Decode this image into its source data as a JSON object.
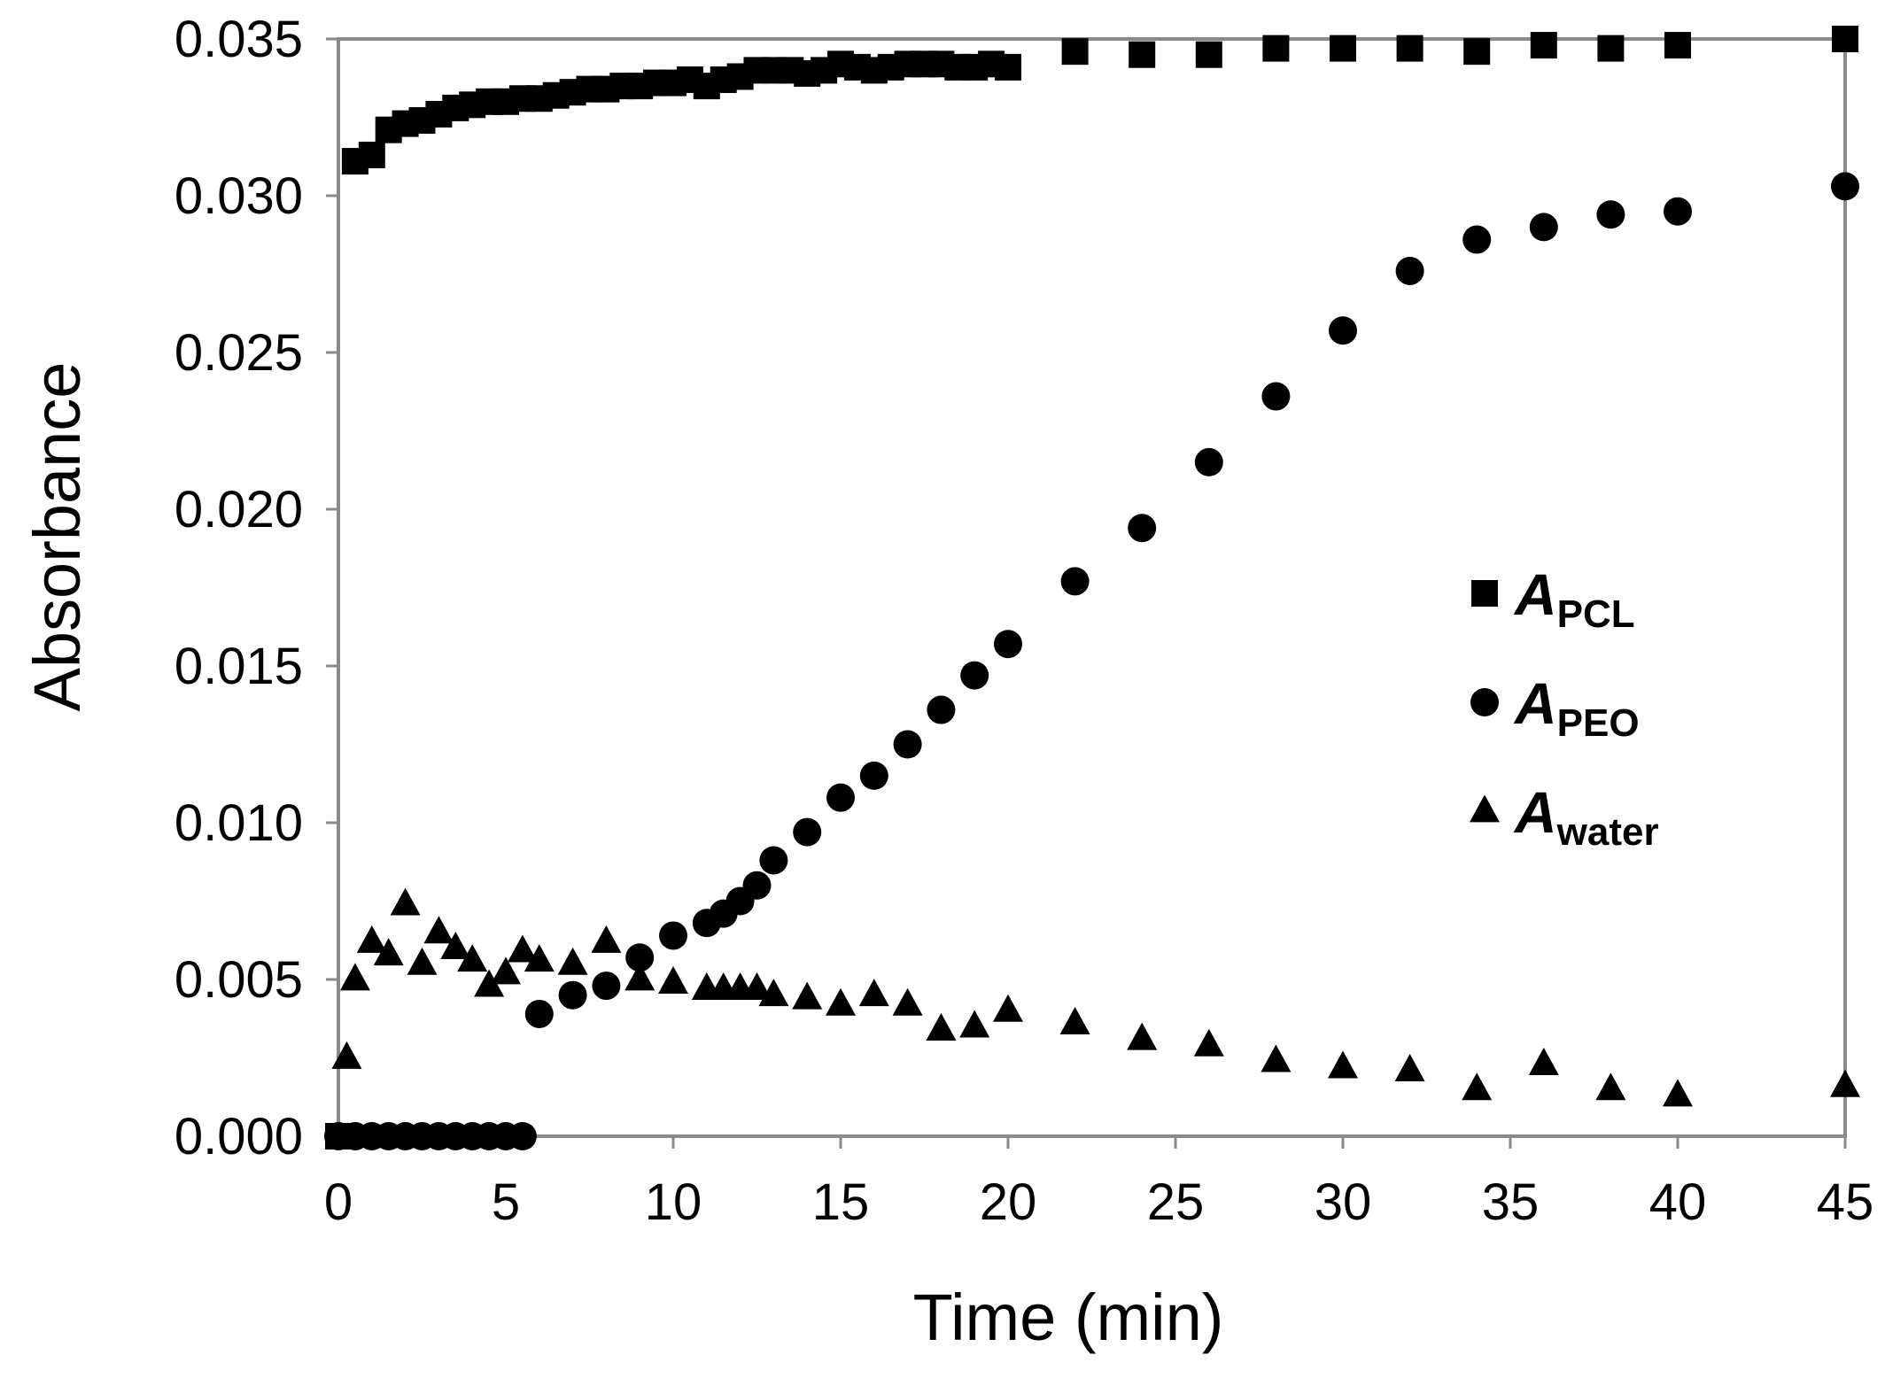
{
  "chart_data": {
    "type": "scatter",
    "xlabel": "Time (min)",
    "ylabel": "Absorbance",
    "xlim": [
      0,
      45
    ],
    "ylim": [
      0.0,
      0.035
    ],
    "x_ticks": [
      "0",
      "5",
      "10",
      "15",
      "20",
      "25",
      "30",
      "35",
      "40",
      "45"
    ],
    "y_ticks": [
      "0.000",
      "0.005",
      "0.010",
      "0.015",
      "0.020",
      "0.025",
      "0.030",
      "0.035"
    ],
    "grid": false,
    "legend_position": "right-middle",
    "series": [
      {
        "name": "A",
        "subscript": "PCL",
        "marker": "square",
        "points": [
          [
            0,
            0.0
          ],
          [
            0.5,
            0.0311
          ],
          [
            1,
            0.0313
          ],
          [
            1.5,
            0.0321
          ],
          [
            2,
            0.0323
          ],
          [
            2.5,
            0.0324
          ],
          [
            3,
            0.0326
          ],
          [
            3.5,
            0.0328
          ],
          [
            4,
            0.0329
          ],
          [
            4.5,
            0.033
          ],
          [
            5,
            0.033
          ],
          [
            5.5,
            0.0331
          ],
          [
            6,
            0.0331
          ],
          [
            6.5,
            0.0332
          ],
          [
            7,
            0.0333
          ],
          [
            7.5,
            0.0334
          ],
          [
            8,
            0.0334
          ],
          [
            8.5,
            0.0335
          ],
          [
            9,
            0.0335
          ],
          [
            9.5,
            0.0336
          ],
          [
            10,
            0.0336
          ],
          [
            10.5,
            0.0337
          ],
          [
            11,
            0.0335
          ],
          [
            11.5,
            0.0337
          ],
          [
            12,
            0.0338
          ],
          [
            12.5,
            0.034
          ],
          [
            13,
            0.034
          ],
          [
            13.5,
            0.034
          ],
          [
            14,
            0.0339
          ],
          [
            14.5,
            0.034
          ],
          [
            15,
            0.0342
          ],
          [
            15.5,
            0.0341
          ],
          [
            16,
            0.034
          ],
          [
            16.5,
            0.0341
          ],
          [
            17,
            0.0342
          ],
          [
            17.5,
            0.0342
          ],
          [
            18,
            0.0342
          ],
          [
            18.5,
            0.0341
          ],
          [
            19,
            0.0341
          ],
          [
            19.5,
            0.0342
          ],
          [
            20,
            0.0341
          ],
          [
            22,
            0.0346
          ],
          [
            24,
            0.0345
          ],
          [
            26,
            0.0345
          ],
          [
            28,
            0.0347
          ],
          [
            30,
            0.0347
          ],
          [
            32,
            0.0347
          ],
          [
            34,
            0.0346
          ],
          [
            36,
            0.0348
          ],
          [
            38,
            0.0347
          ],
          [
            40,
            0.0348
          ],
          [
            45,
            0.035
          ]
        ]
      },
      {
        "name": "A",
        "subscript": "PEO",
        "marker": "circle",
        "points": [
          [
            0,
            0.0
          ],
          [
            0.5,
            0.0
          ],
          [
            1,
            0.0
          ],
          [
            1.5,
            0.0
          ],
          [
            2,
            0.0
          ],
          [
            2.5,
            0.0
          ],
          [
            3,
            0.0
          ],
          [
            3.5,
            0.0
          ],
          [
            4,
            0.0
          ],
          [
            4.5,
            0.0
          ],
          [
            5,
            0.0
          ],
          [
            5.5,
            0.0
          ],
          [
            6,
            0.0039
          ],
          [
            7,
            0.0045
          ],
          [
            8,
            0.0048
          ],
          [
            9,
            0.0057
          ],
          [
            10,
            0.0064
          ],
          [
            11,
            0.0068
          ],
          [
            11.5,
            0.0071
          ],
          [
            12,
            0.0075
          ],
          [
            12.5,
            0.008
          ],
          [
            13,
            0.0088
          ],
          [
            14,
            0.0097
          ],
          [
            15,
            0.0108
          ],
          [
            16,
            0.0115
          ],
          [
            17,
            0.0125
          ],
          [
            18,
            0.0136
          ],
          [
            19,
            0.0147
          ],
          [
            20,
            0.0157
          ],
          [
            22,
            0.0177
          ],
          [
            24,
            0.0194
          ],
          [
            26,
            0.0215
          ],
          [
            28,
            0.0236
          ],
          [
            30,
            0.0257
          ],
          [
            32,
            0.0276
          ],
          [
            34,
            0.0286
          ],
          [
            36,
            0.029
          ],
          [
            38,
            0.0294
          ],
          [
            40,
            0.0295
          ],
          [
            45,
            0.0303
          ]
        ]
      },
      {
        "name": "A",
        "subscript": "water",
        "marker": "triangle",
        "points": [
          [
            0.25,
            0.0025
          ],
          [
            0.5,
            0.005
          ],
          [
            1,
            0.0062
          ],
          [
            1.5,
            0.0058
          ],
          [
            2,
            0.0074
          ],
          [
            2.5,
            0.0055
          ],
          [
            3,
            0.0065
          ],
          [
            3.5,
            0.006
          ],
          [
            4,
            0.0056
          ],
          [
            4.5,
            0.0048
          ],
          [
            5,
            0.0052
          ],
          [
            5.5,
            0.0059
          ],
          [
            6,
            0.0056
          ],
          [
            7,
            0.0055
          ],
          [
            8,
            0.0062
          ],
          [
            9,
            0.005
          ],
          [
            10,
            0.0049
          ],
          [
            11,
            0.0047
          ],
          [
            11.5,
            0.0047
          ],
          [
            12,
            0.0047
          ],
          [
            12.5,
            0.0047
          ],
          [
            13,
            0.0045
          ],
          [
            14,
            0.0044
          ],
          [
            15,
            0.0042
          ],
          [
            16,
            0.0045
          ],
          [
            17,
            0.0042
          ],
          [
            18,
            0.0034
          ],
          [
            19,
            0.0035
          ],
          [
            20,
            0.004
          ],
          [
            22,
            0.0036
          ],
          [
            24,
            0.0031
          ],
          [
            26,
            0.0029
          ],
          [
            28,
            0.0024
          ],
          [
            30,
            0.0022
          ],
          [
            32,
            0.0021
          ],
          [
            34,
            0.0015
          ],
          [
            36,
            0.0023
          ],
          [
            38,
            0.0015
          ],
          [
            40,
            0.0013
          ],
          [
            45,
            0.0016
          ]
        ]
      }
    ]
  }
}
